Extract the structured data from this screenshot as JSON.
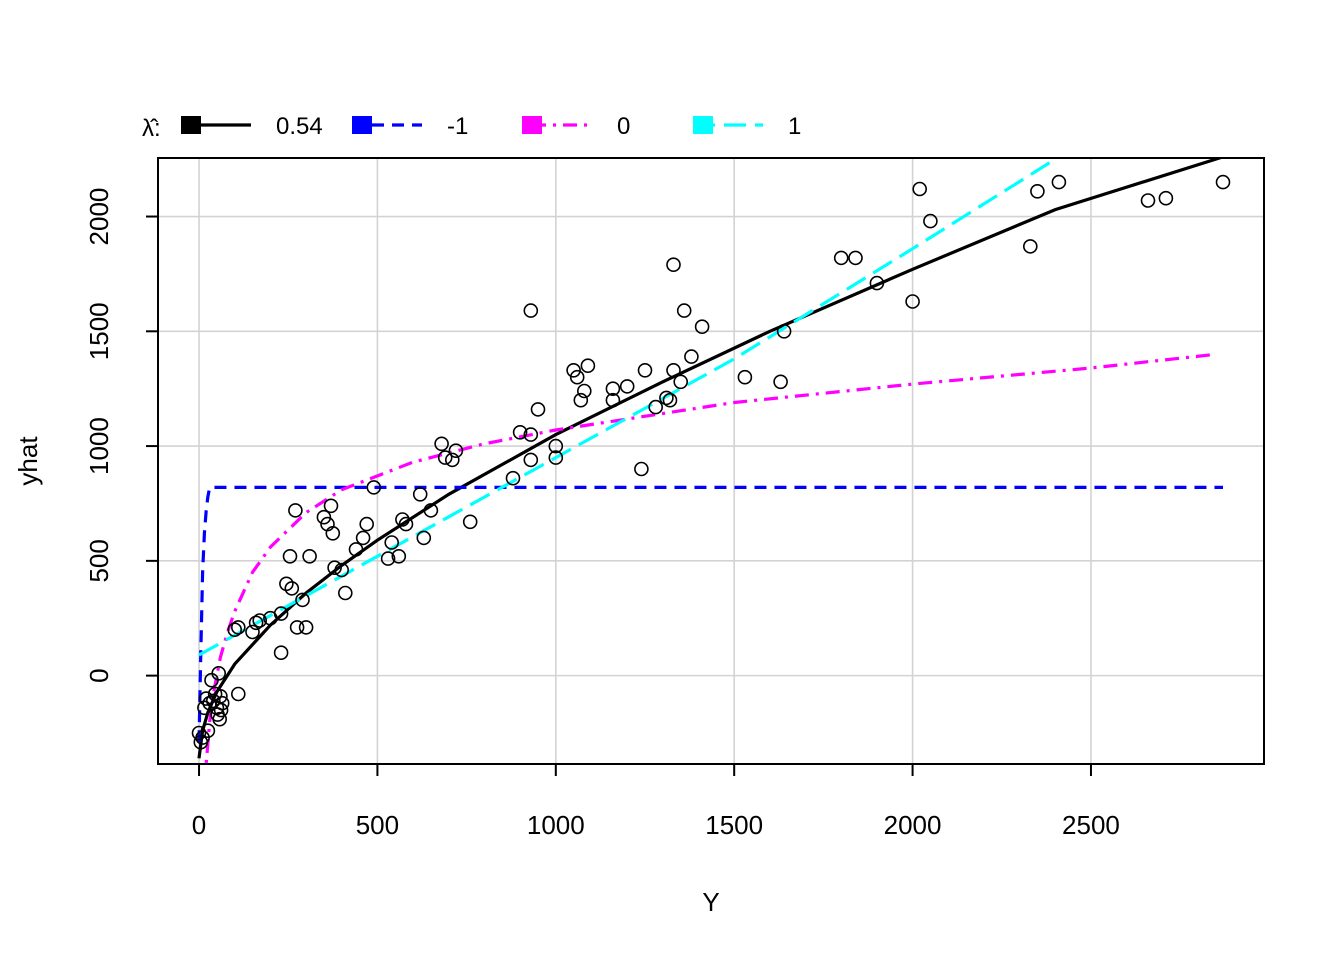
{
  "chart_data": {
    "type": "scatter",
    "title": "",
    "xlabel": "Y",
    "ylabel": "yhat",
    "xlim": [
      -115,
      2985
    ],
    "ylim": [
      -385,
      2255
    ],
    "xticks": [
      0,
      500,
      1000,
      1500,
      2000,
      2500
    ],
    "yticks": [
      0,
      500,
      1000,
      1500,
      2000
    ],
    "grid": true,
    "legend": {
      "position": "top",
      "title_symbol": "λ̂:",
      "entries": [
        {
          "label": "0.54",
          "color": "#000000",
          "dash": "solid",
          "key": "l054"
        },
        {
          "label": "-1",
          "color": "#0000ff",
          "dash": "dashed",
          "key": "lm1"
        },
        {
          "label": "0",
          "color": "#ff00ff",
          "dash": "dotdash",
          "key": "l0"
        },
        {
          "label": "1",
          "color": "#00ffff",
          "dash": "longdash",
          "key": "l1"
        }
      ]
    },
    "points": [
      [
        0,
        -250
      ],
      [
        5,
        -290
      ],
      [
        10,
        -270
      ],
      [
        15,
        -140
      ],
      [
        20,
        -100
      ],
      [
        25,
        -240
      ],
      [
        30,
        -120
      ],
      [
        35,
        -20
      ],
      [
        40,
        -110
      ],
      [
        45,
        -80
      ],
      [
        50,
        -140
      ],
      [
        52,
        -170
      ],
      [
        55,
        10
      ],
      [
        58,
        -190
      ],
      [
        60,
        -90
      ],
      [
        62,
        -150
      ],
      [
        65,
        -120
      ],
      [
        110,
        -80
      ],
      [
        100,
        200
      ],
      [
        110,
        210
      ],
      [
        150,
        190
      ],
      [
        160,
        230
      ],
      [
        170,
        240
      ],
      [
        200,
        250
      ],
      [
        230,
        270
      ],
      [
        230,
        100
      ],
      [
        245,
        400
      ],
      [
        255,
        520
      ],
      [
        260,
        380
      ],
      [
        270,
        720
      ],
      [
        275,
        210
      ],
      [
        290,
        330
      ],
      [
        300,
        210
      ],
      [
        310,
        520
      ],
      [
        350,
        690
      ],
      [
        360,
        660
      ],
      [
        370,
        740
      ],
      [
        375,
        620
      ],
      [
        380,
        470
      ],
      [
        400,
        460
      ],
      [
        410,
        360
      ],
      [
        440,
        550
      ],
      [
        460,
        600
      ],
      [
        470,
        660
      ],
      [
        490,
        820
      ],
      [
        530,
        510
      ],
      [
        540,
        580
      ],
      [
        560,
        520
      ],
      [
        570,
        680
      ],
      [
        580,
        660
      ],
      [
        620,
        790
      ],
      [
        630,
        600
      ],
      [
        650,
        720
      ],
      [
        680,
        1010
      ],
      [
        690,
        950
      ],
      [
        710,
        940
      ],
      [
        720,
        980
      ],
      [
        760,
        670
      ],
      [
        880,
        860
      ],
      [
        900,
        1060
      ],
      [
        930,
        1050
      ],
      [
        930,
        940
      ],
      [
        930,
        1590
      ],
      [
        950,
        1160
      ],
      [
        1000,
        1000
      ],
      [
        1000,
        950
      ],
      [
        1050,
        1330
      ],
      [
        1060,
        1300
      ],
      [
        1070,
        1200
      ],
      [
        1080,
        1240
      ],
      [
        1090,
        1350
      ],
      [
        1160,
        1200
      ],
      [
        1160,
        1250
      ],
      [
        1200,
        1260
      ],
      [
        1240,
        900
      ],
      [
        1250,
        1330
      ],
      [
        1280,
        1170
      ],
      [
        1310,
        1210
      ],
      [
        1320,
        1200
      ],
      [
        1330,
        1330
      ],
      [
        1330,
        1790
      ],
      [
        1350,
        1280
      ],
      [
        1360,
        1590
      ],
      [
        1380,
        1390
      ],
      [
        1410,
        1520
      ],
      [
        1530,
        1300
      ],
      [
        1630,
        1280
      ],
      [
        1640,
        1500
      ],
      [
        1800,
        1820
      ],
      [
        1840,
        1820
      ],
      [
        1900,
        1710
      ],
      [
        2000,
        1630
      ],
      [
        2020,
        2120
      ],
      [
        2050,
        1980
      ],
      [
        2330,
        1870
      ],
      [
        2350,
        2110
      ],
      [
        2410,
        2150
      ],
      [
        2660,
        2070
      ],
      [
        2710,
        2080
      ],
      [
        2870,
        2150
      ]
    ],
    "series": [
      {
        "name": "0.54",
        "key": "l054",
        "x": [
          0,
          10,
          25,
          50,
          100,
          200,
          300,
          400,
          500,
          700,
          1000,
          1300,
          1600,
          2000,
          2400,
          2870
        ],
        "y": [
          -360,
          -240,
          -160,
          -70,
          50,
          220,
          360,
          480,
          590,
          790,
          1050,
          1280,
          1500,
          1770,
          2030,
          2260
        ]
      },
      {
        "name": "-1",
        "key": "lm1",
        "x": [
          0,
          5,
          10,
          15,
          20,
          25,
          30,
          2870
        ],
        "y": [
          -290,
          100,
          450,
          620,
          720,
          780,
          820,
          820
        ]
      },
      {
        "name": "0",
        "key": "l0",
        "x": [
          20,
          30,
          40,
          60,
          80,
          100,
          150,
          200,
          300,
          400,
          600,
          800,
          1000,
          1500,
          2000,
          2500,
          2850
        ],
        "y": [
          -380,
          -200,
          -80,
          80,
          190,
          280,
          450,
          560,
          710,
          810,
          930,
          1010,
          1070,
          1190,
          1270,
          1340,
          1400
        ]
      },
      {
        "name": "1",
        "key": "l1",
        "x": [
          0,
          500,
          1000,
          1500,
          2000,
          2400
        ],
        "y": [
          90,
          520,
          950,
          1380,
          1860,
          2250
        ]
      }
    ]
  }
}
